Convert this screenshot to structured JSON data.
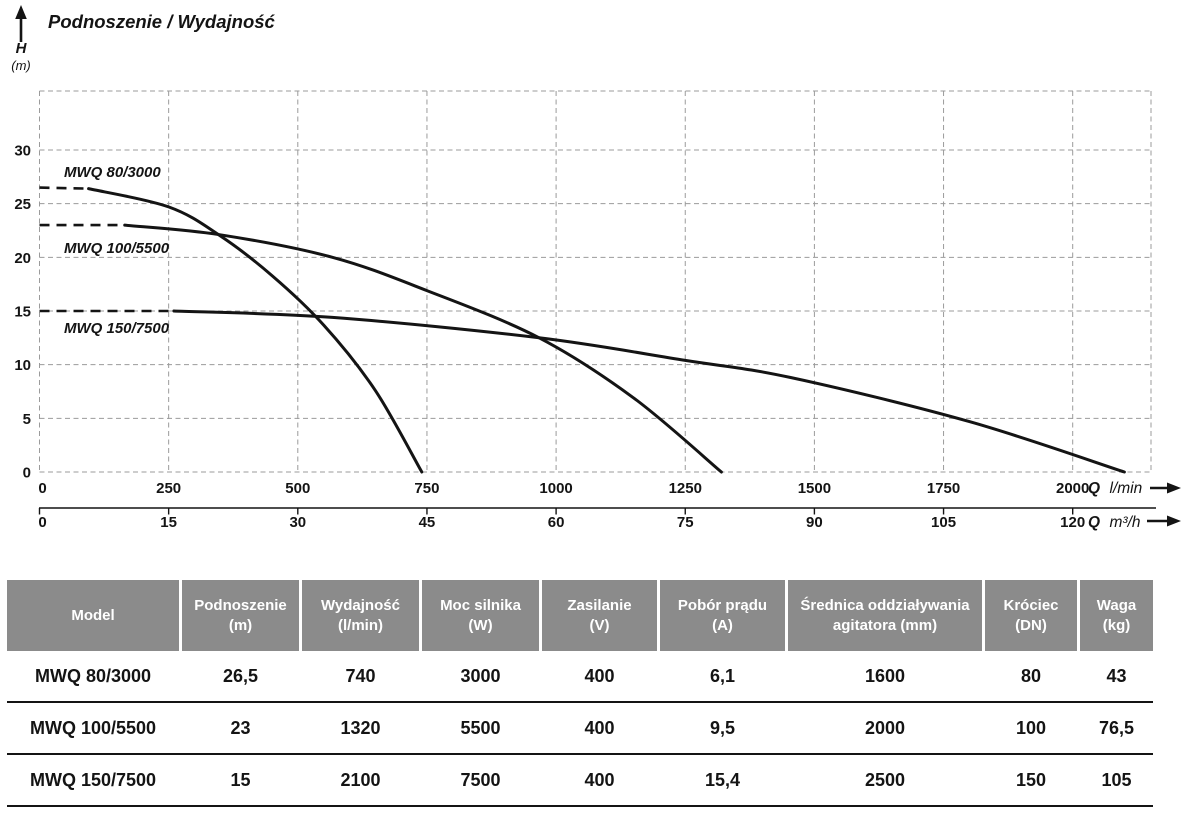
{
  "title": "Podnoszenie / Wydajność",
  "y_axis": {
    "symbol": "H",
    "unit": "(m)",
    "ticks": [
      30,
      25,
      20,
      15,
      10,
      5,
      0
    ]
  },
  "x_axis_primary": {
    "ticks": [
      0,
      250,
      500,
      750,
      1000,
      1250,
      1500,
      1750,
      2000
    ],
    "label_q": "Q",
    "label_unit": "l/min"
  },
  "x_axis_secondary": {
    "ticks": [
      0,
      15,
      30,
      45,
      60,
      75,
      90,
      105,
      120
    ],
    "label_q": "Q",
    "label_unit": "m³/h"
  },
  "chart_data": {
    "type": "line",
    "title": "Podnoszenie / Wydajność",
    "xlabel": "Q (l/min, secondary scale m³/h)",
    "ylabel": "H (m)",
    "xlim": [
      0,
      2150
    ],
    "ylim": [
      0,
      35.5
    ],
    "grid": true,
    "legend_position": "labels-on-curves",
    "series": [
      {
        "name": "MWQ 80/3000",
        "dashed_until": 95,
        "points": [
          [
            0,
            26.5
          ],
          [
            95,
            26.4
          ],
          [
            250,
            24.7
          ],
          [
            350,
            22.0
          ],
          [
            450,
            18.3
          ],
          [
            550,
            13.7
          ],
          [
            650,
            7.6
          ],
          [
            740,
            0
          ]
        ]
      },
      {
        "name": "MWQ 100/5500",
        "dashed_until": 165,
        "points": [
          [
            0,
            23
          ],
          [
            165,
            23
          ],
          [
            350,
            22.1
          ],
          [
            567,
            20
          ],
          [
            750,
            16.9
          ],
          [
            967,
            12.5
          ],
          [
            1150,
            6.9
          ],
          [
            1320,
            0
          ]
        ]
      },
      {
        "name": "MWQ 150/7500",
        "dashed_until": 260,
        "points": [
          [
            0,
            15
          ],
          [
            260,
            15
          ],
          [
            567,
            14.4
          ],
          [
            967,
            12.5
          ],
          [
            1250,
            10.4
          ],
          [
            1454,
            8.8
          ],
          [
            1800,
            4.7
          ],
          [
            2100,
            0
          ]
        ]
      }
    ]
  },
  "table": {
    "columns": [
      {
        "title": "Model",
        "unit": ""
      },
      {
        "title": "Podnoszenie",
        "unit": "(m)"
      },
      {
        "title": "Wydajność",
        "unit": "(l/min)"
      },
      {
        "title": "Moc silnika",
        "unit": "(W)"
      },
      {
        "title": "Zasilanie",
        "unit": "(V)"
      },
      {
        "title": "Pobór prądu",
        "unit": "(A)"
      },
      {
        "title": "Średnica oddziaływania",
        "unit": "agitatora (mm)"
      },
      {
        "title": "Króciec",
        "unit": "(DN)"
      },
      {
        "title": "Waga",
        "unit": "(kg)"
      }
    ],
    "rows": [
      {
        "cells": [
          "MWQ 80/3000",
          "26,5",
          "740",
          "3000",
          "400",
          "6,1",
          "1600",
          "80",
          "43"
        ]
      },
      {
        "cells": [
          "MWQ 100/5500",
          "23",
          "1320",
          "5500",
          "400",
          "9,5",
          "2000",
          "100",
          "76,5"
        ]
      },
      {
        "cells": [
          "MWQ 150/7500",
          "15",
          "2100",
          "7500",
          "400",
          "15,4",
          "2500",
          "150",
          "105"
        ]
      }
    ]
  },
  "colors": {
    "curve": "#141414",
    "grid": "#9b9b9b",
    "text": "#141414",
    "header_bg": "#8b8b8b",
    "header_text": "#ffffff",
    "row_divider": "#141414"
  }
}
